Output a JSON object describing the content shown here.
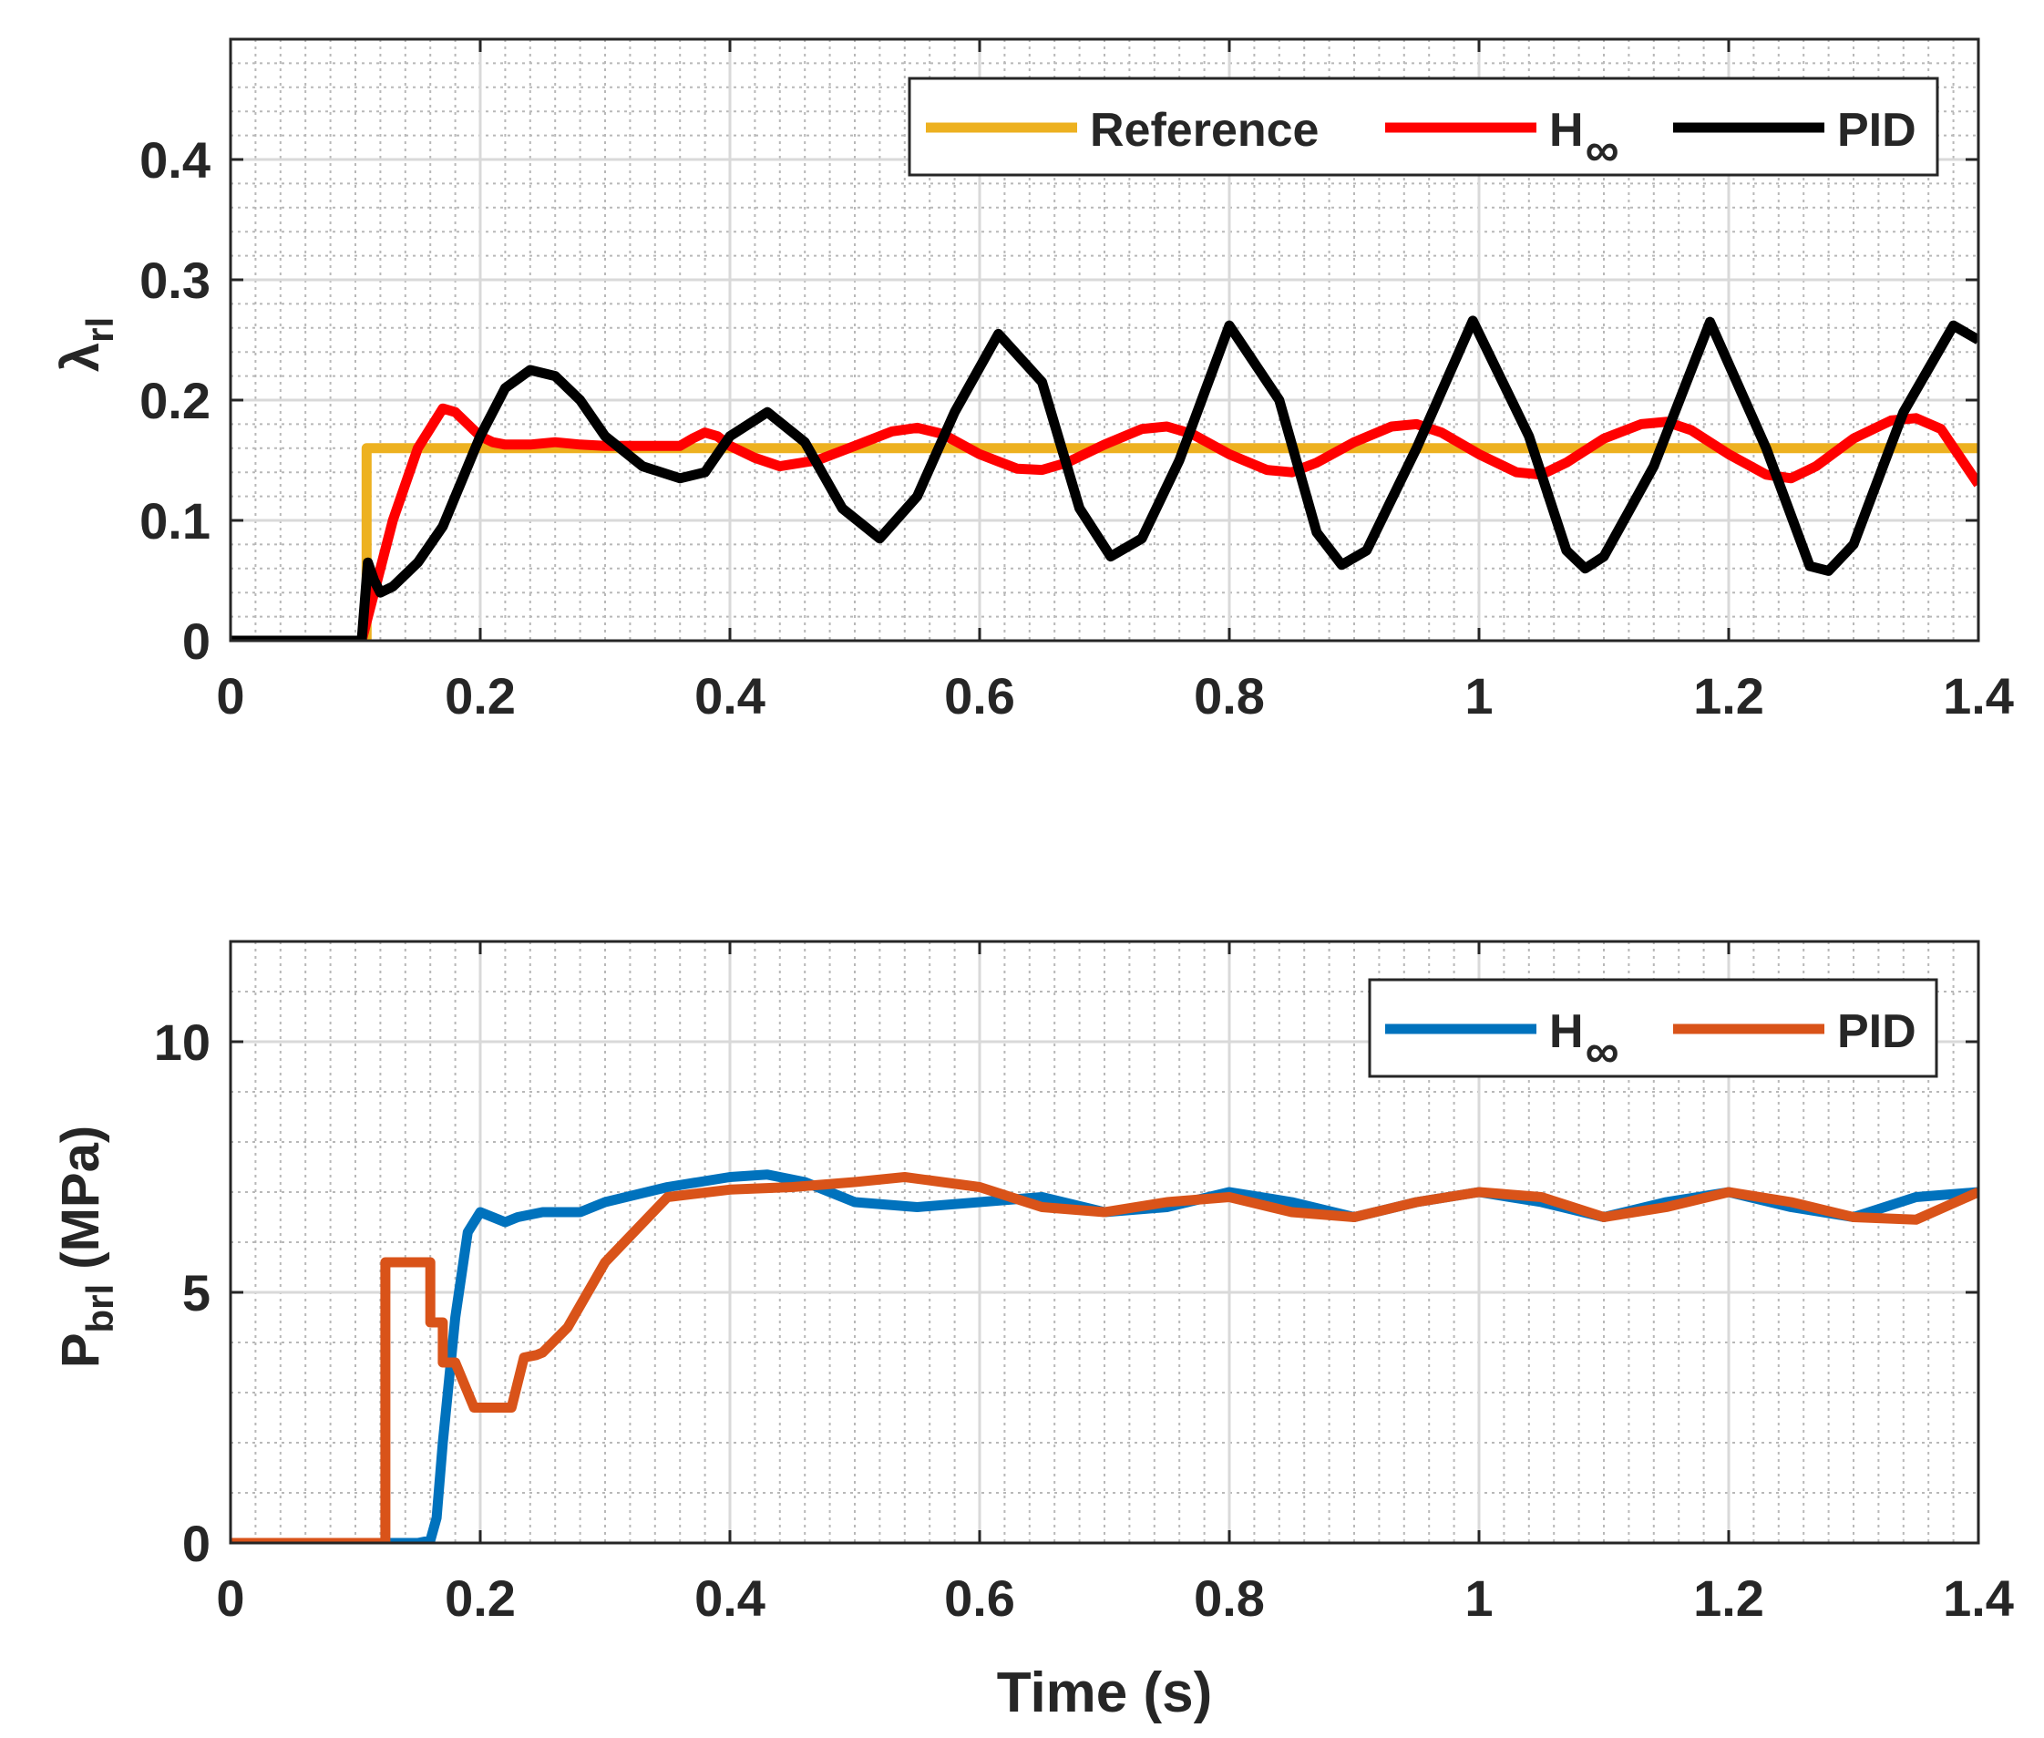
{
  "chart_data": [
    {
      "type": "line",
      "title": "",
      "xlabel": "",
      "ylabel": {
        "main": "λ",
        "sub": "rl"
      },
      "xlim": [
        0,
        1.4
      ],
      "ylim": [
        0,
        0.5
      ],
      "xticks": [
        0,
        0.2,
        0.4,
        0.6,
        0.8,
        1,
        1.2,
        1.4
      ],
      "xtick_labels": [
        "0",
        "0.2",
        "0.4",
        "0.6",
        "0.8",
        "1",
        "1.2",
        "1.4"
      ],
      "yticks": [
        0,
        0.1,
        0.2,
        0.3,
        0.4
      ],
      "ytick_labels": [
        "0",
        "0.1",
        "0.2",
        "0.3",
        "0.4"
      ],
      "grid": true,
      "minor_grid": true,
      "legend": {
        "position": "top-right",
        "orientation": "horizontal"
      },
      "series": [
        {
          "name": "Reference",
          "label": "Reference",
          "label_sub": "",
          "color": "#EDB120",
          "x": [
            0,
            0.109,
            0.109,
            1.4
          ],
          "y": [
            0,
            0,
            0.16,
            0.16
          ]
        },
        {
          "name": "H∞",
          "label": "H",
          "label_sub": "∞",
          "color": "#FF0000",
          "x": [
            0,
            0.105,
            0.115,
            0.13,
            0.15,
            0.17,
            0.18,
            0.19,
            0.2,
            0.21,
            0.22,
            0.24,
            0.26,
            0.28,
            0.3,
            0.32,
            0.34,
            0.36,
            0.37,
            0.38,
            0.39,
            0.4,
            0.42,
            0.44,
            0.47,
            0.5,
            0.53,
            0.55,
            0.57,
            0.6,
            0.63,
            0.65,
            0.67,
            0.7,
            0.73,
            0.75,
            0.77,
            0.8,
            0.83,
            0.85,
            0.87,
            0.9,
            0.93,
            0.95,
            0.97,
            1.0,
            1.03,
            1.05,
            1.07,
            1.1,
            1.13,
            1.15,
            1.17,
            1.2,
            1.23,
            1.25,
            1.27,
            1.3,
            1.33,
            1.35,
            1.37,
            1.4
          ],
          "y": [
            0,
            0,
            0.04,
            0.1,
            0.16,
            0.193,
            0.19,
            0.18,
            0.17,
            0.165,
            0.163,
            0.163,
            0.165,
            0.163,
            0.162,
            0.162,
            0.162,
            0.162,
            0.168,
            0.173,
            0.17,
            0.162,
            0.152,
            0.145,
            0.15,
            0.162,
            0.174,
            0.177,
            0.172,
            0.155,
            0.143,
            0.142,
            0.148,
            0.163,
            0.176,
            0.178,
            0.172,
            0.155,
            0.142,
            0.14,
            0.148,
            0.165,
            0.178,
            0.18,
            0.173,
            0.155,
            0.14,
            0.138,
            0.148,
            0.168,
            0.18,
            0.182,
            0.175,
            0.155,
            0.138,
            0.135,
            0.145,
            0.168,
            0.183,
            0.185,
            0.176,
            0.13
          ]
        },
        {
          "name": "PID",
          "label": "PID",
          "label_sub": "",
          "color": "#000000",
          "x": [
            0,
            0.105,
            0.11,
            0.115,
            0.12,
            0.13,
            0.15,
            0.17,
            0.2,
            0.22,
            0.24,
            0.26,
            0.28,
            0.3,
            0.33,
            0.36,
            0.38,
            0.4,
            0.43,
            0.46,
            0.49,
            0.52,
            0.55,
            0.58,
            0.615,
            0.65,
            0.68,
            0.705,
            0.73,
            0.76,
            0.8,
            0.84,
            0.87,
            0.89,
            0.91,
            0.95,
            0.995,
            1.04,
            1.07,
            1.085,
            1.1,
            1.14,
            1.185,
            1.23,
            1.265,
            1.28,
            1.3,
            1.34,
            1.38,
            1.4
          ],
          "y": [
            0,
            0,
            0.065,
            0.05,
            0.04,
            0.045,
            0.065,
            0.095,
            0.17,
            0.21,
            0.225,
            0.22,
            0.2,
            0.17,
            0.145,
            0.135,
            0.14,
            0.17,
            0.19,
            0.165,
            0.11,
            0.085,
            0.12,
            0.19,
            0.255,
            0.215,
            0.11,
            0.07,
            0.085,
            0.15,
            0.262,
            0.2,
            0.09,
            0.063,
            0.075,
            0.16,
            0.266,
            0.17,
            0.075,
            0.06,
            0.07,
            0.145,
            0.265,
            0.16,
            0.062,
            0.058,
            0.08,
            0.19,
            0.262,
            0.25
          ]
        }
      ]
    },
    {
      "type": "line",
      "title": "",
      "xlabel": "Time (s)",
      "ylabel": {
        "main": "P",
        "sub": "brl",
        "suffix": " (MPa)"
      },
      "xlim": [
        0,
        1.4
      ],
      "ylim": [
        0,
        12
      ],
      "xticks": [
        0,
        0.2,
        0.4,
        0.6,
        0.8,
        1,
        1.2,
        1.4
      ],
      "xtick_labels": [
        "0",
        "0.2",
        "0.4",
        "0.6",
        "0.8",
        "1",
        "1.2",
        "1.4"
      ],
      "yticks": [
        0,
        5,
        10
      ],
      "ytick_labels": [
        "0",
        "5",
        "10"
      ],
      "grid": true,
      "minor_grid": true,
      "legend": {
        "position": "top-right",
        "orientation": "horizontal"
      },
      "series": [
        {
          "name": "H∞",
          "label": "H",
          "label_sub": "∞",
          "color": "#0072BD",
          "x": [
            0,
            0.15,
            0.16,
            0.165,
            0.17,
            0.18,
            0.19,
            0.2,
            0.21,
            0.22,
            0.23,
            0.25,
            0.28,
            0.3,
            0.35,
            0.4,
            0.43,
            0.46,
            0.5,
            0.55,
            0.6,
            0.65,
            0.7,
            0.75,
            0.8,
            0.85,
            0.9,
            0.95,
            1.0,
            1.05,
            1.1,
            1.15,
            1.2,
            1.25,
            1.3,
            1.35,
            1.4
          ],
          "y": [
            0,
            0,
            0.05,
            0.5,
            2.0,
            4.5,
            6.2,
            6.6,
            6.5,
            6.4,
            6.5,
            6.6,
            6.6,
            6.8,
            7.1,
            7.3,
            7.35,
            7.2,
            6.8,
            6.7,
            6.8,
            6.9,
            6.6,
            6.7,
            7.0,
            6.8,
            6.5,
            6.8,
            7.0,
            6.8,
            6.5,
            6.8,
            7.0,
            6.7,
            6.5,
            6.9,
            7.0
          ]
        },
        {
          "name": "PID",
          "label": "PID",
          "label_sub": "",
          "color": "#D95319",
          "x": [
            0,
            0.124,
            0.124,
            0.16,
            0.16,
            0.17,
            0.17,
            0.18,
            0.18,
            0.195,
            0.195,
            0.225,
            0.235,
            0.245,
            0.25,
            0.27,
            0.3,
            0.35,
            0.4,
            0.45,
            0.5,
            0.54,
            0.57,
            0.6,
            0.65,
            0.7,
            0.75,
            0.8,
            0.85,
            0.9,
            0.95,
            1.0,
            1.05,
            1.1,
            1.15,
            1.2,
            1.25,
            1.3,
            1.35,
            1.4
          ],
          "y": [
            0,
            0,
            5.6,
            5.6,
            4.4,
            4.4,
            3.6,
            3.6,
            3.6,
            2.7,
            2.7,
            2.7,
            3.7,
            3.75,
            3.8,
            4.3,
            5.6,
            6.9,
            7.05,
            7.1,
            7.2,
            7.3,
            7.2,
            7.1,
            6.7,
            6.6,
            6.8,
            6.9,
            6.6,
            6.5,
            6.8,
            7.0,
            6.9,
            6.5,
            6.7,
            7.0,
            6.8,
            6.5,
            6.45,
            7.0
          ]
        }
      ]
    }
  ]
}
